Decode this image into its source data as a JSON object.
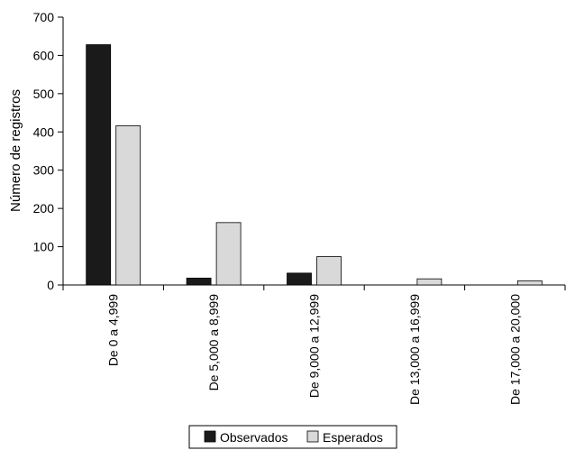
{
  "chart_data": {
    "type": "bar",
    "title": "",
    "ylabel": "Número de registros",
    "xlabel": "",
    "ylim": [
      0,
      700
    ],
    "yticks": [
      0,
      100,
      200,
      300,
      400,
      500,
      600,
      700
    ],
    "categories": [
      "De 0 a 4,999",
      "De 5,000 a 8,999",
      "De 9,000 a 12,999",
      "De 13,000 a 16,999",
      "De 17,000 a 20,000"
    ],
    "series": [
      {
        "name": "Observados",
        "color": "#1a1a1a",
        "values": [
          628,
          18,
          31,
          0,
          0
        ]
      },
      {
        "name": "Esperados",
        "color": "#d9d9d9",
        "values": [
          416,
          163,
          74,
          16,
          11
        ]
      }
    ],
    "grid": false,
    "legend_position": "bottom"
  }
}
